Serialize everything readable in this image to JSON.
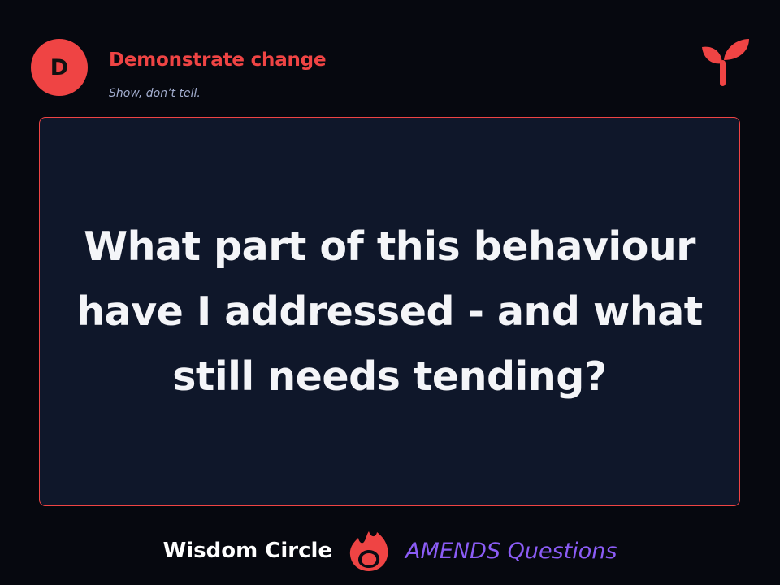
{
  "header": {
    "badge_letter": "D",
    "step_title": "Demonstrate change",
    "step_subtitle": "Show, don’t tell.",
    "logo_icon": "sprout-icon"
  },
  "card": {
    "question": "What part of this behaviour have I addressed - and what still needs tending?"
  },
  "footer": {
    "brand": "Wisdom Circle",
    "flame_icon": "flame-icon",
    "series": "AMENDS Questions"
  },
  "colors": {
    "accent": "#ef4444",
    "card_background": "#0f172a",
    "page_background": "#06080f",
    "subtitle": "#a3aed0",
    "series_text": "#8b5cf6"
  }
}
